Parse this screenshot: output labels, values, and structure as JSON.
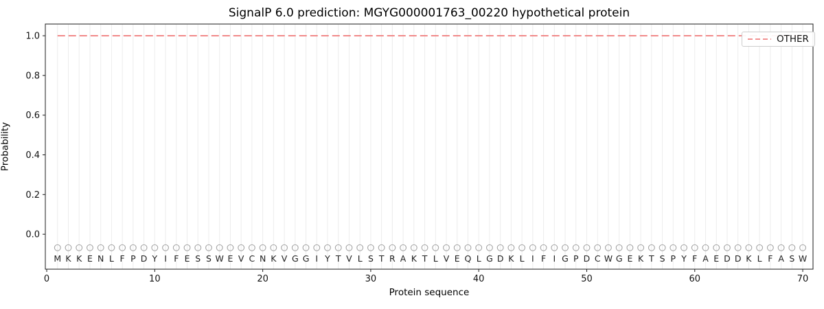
{
  "chart_data": {
    "type": "line",
    "title": "SignalP 6.0 prediction: MGYG000001763_00220 hypothetical protein",
    "xlabel": "Protein sequence",
    "ylabel": "Probability",
    "xlim": [
      -0.13,
      70.95
    ],
    "ylim": [
      -0.176,
      1.059
    ],
    "xticks": [
      {
        "value": 0,
        "label": "0"
      },
      {
        "value": 10,
        "label": "10"
      },
      {
        "value": 20,
        "label": "20"
      },
      {
        "value": 30,
        "label": "30"
      },
      {
        "value": 40,
        "label": "40"
      },
      {
        "value": 50,
        "label": "50"
      },
      {
        "value": 60,
        "label": "60"
      },
      {
        "value": 70,
        "label": "70"
      }
    ],
    "yticks": [
      {
        "value": 0.0,
        "label": "0.0"
      },
      {
        "value": 0.2,
        "label": "0.2"
      },
      {
        "value": 0.4,
        "label": "0.4"
      },
      {
        "value": 0.6,
        "label": "0.6"
      },
      {
        "value": 0.8,
        "label": "0.8"
      },
      {
        "value": 1.0,
        "label": "1.0"
      }
    ],
    "grid": {
      "vertical_per_residue": true,
      "color": "#ececec"
    },
    "sequence": "MKKENLFPDYIFESSWEVCNKVGGIYTVLSTRAKTLVEQLGDKLIFIGPDCWGEKTSPYFAEDDKLFASW",
    "sequence_length": 70,
    "series": [
      {
        "name": "OTHER",
        "color": "#f08080",
        "linestyle": "dashed",
        "x_start": 1,
        "x_end": 70,
        "constant_y": 1.0
      }
    ],
    "markers": {
      "shape": "circle",
      "color": "#a6a6a6",
      "y_value": -0.068
    },
    "sequence_letters_y": -0.122,
    "sequence_letter_color": "#1f1f1f",
    "legend": {
      "position": "upper right",
      "entries": [
        {
          "label": "OTHER",
          "color": "#f08080",
          "style": "dashed"
        }
      ]
    }
  }
}
